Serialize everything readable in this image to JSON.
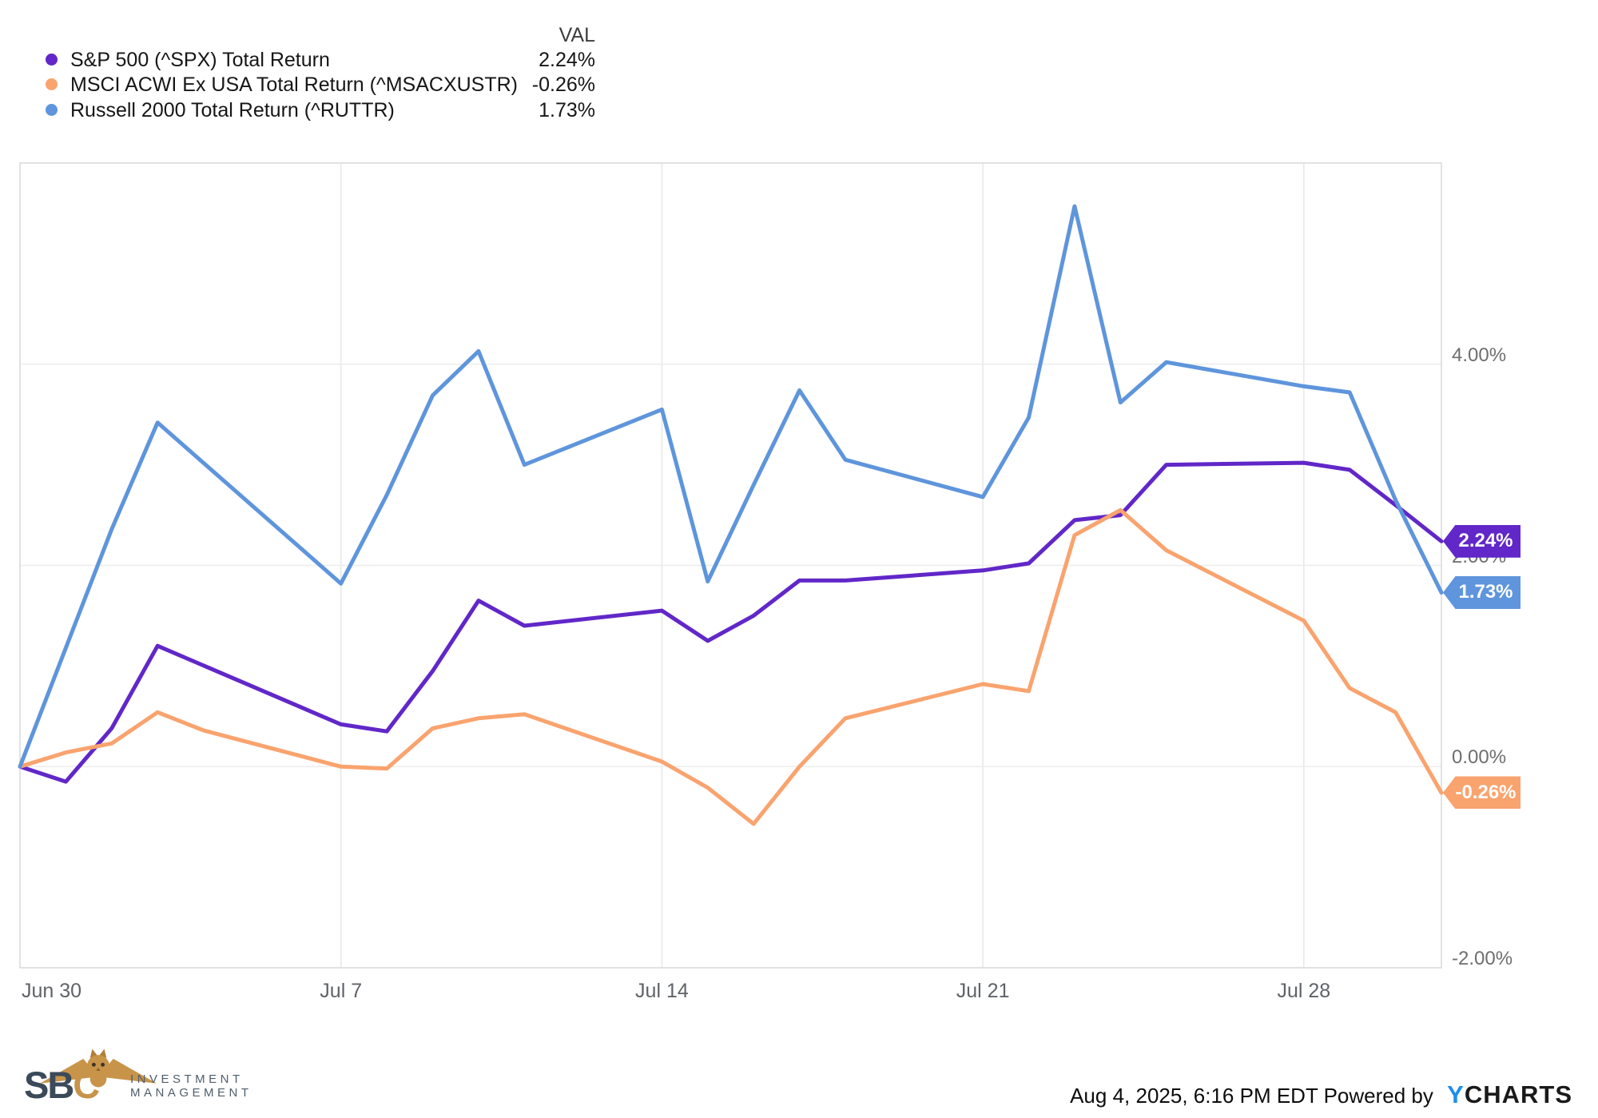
{
  "legend": {
    "val_header": "VAL",
    "items": [
      {
        "label": "S&P 500 (^SPX) Total Return",
        "value": "2.24%",
        "color": "#6127C8"
      },
      {
        "label": "MSCI ACWI Ex USA Total Return (^MSACXUSTR)",
        "value": "-0.26%",
        "color": "#F9A36E"
      },
      {
        "label": "Russell 2000 Total Return (^RUTTR)",
        "value": "1.73%",
        "color": "#5E95DC"
      }
    ]
  },
  "chart_data": {
    "type": "line",
    "title": "",
    "xlabel": "",
    "ylabel": "",
    "grid": true,
    "legend_position": "top-left",
    "ylim": [
      -2,
      6
    ],
    "xlim_days": [
      0,
      31
    ],
    "y_ticks": [
      {
        "label": "4.00%",
        "v": 4
      },
      {
        "label": "2.00%",
        "v": 2
      },
      {
        "label": "0.00%",
        "v": 0
      },
      {
        "label": "-2.00%",
        "v": -2
      }
    ],
    "x_ticks": [
      {
        "label": "Jun 30",
        "t": 0
      },
      {
        "label": "Jul 7",
        "t": 7
      },
      {
        "label": "Jul 14",
        "t": 14
      },
      {
        "label": "Jul 21",
        "t": 21
      },
      {
        "label": "Jul 28",
        "t": 28
      }
    ],
    "series": [
      {
        "name": "S&P 500 (^SPX) Total Return",
        "ticker": "^SPX",
        "color": "#6127C8",
        "final": "2.24%",
        "points": [
          [
            "Jun 30",
            0,
            0.0
          ],
          [
            "Jul 1",
            1,
            -0.15
          ],
          [
            "Jul 2",
            2,
            0.38
          ],
          [
            "Jul 3",
            3,
            1.2
          ],
          [
            "Jul 7",
            7,
            0.42
          ],
          [
            "Jul 8",
            8,
            0.35
          ],
          [
            "Jul 9",
            9,
            0.95
          ],
          [
            "Jul 10",
            10,
            1.65
          ],
          [
            "Jul 11",
            11,
            1.4
          ],
          [
            "Jul 14",
            14,
            1.55
          ],
          [
            "Jul 15",
            15,
            1.25
          ],
          [
            "Jul 16",
            16,
            1.5
          ],
          [
            "Jul 17",
            17,
            1.85
          ],
          [
            "Jul 18",
            18,
            1.85
          ],
          [
            "Jul 21",
            21,
            1.95
          ],
          [
            "Jul 22",
            22,
            2.02
          ],
          [
            "Jul 23",
            23,
            2.45
          ],
          [
            "Jul 24",
            24,
            2.5
          ],
          [
            "Jul 25",
            25,
            3.0
          ],
          [
            "Jul 28",
            28,
            3.02
          ],
          [
            "Jul 29",
            29,
            2.95
          ],
          [
            "Jul 30",
            30,
            2.6
          ],
          [
            "Jul 31",
            31,
            2.24
          ]
        ]
      },
      {
        "name": "MSCI ACWI Ex USA Total Return (^MSACXUSTR)",
        "ticker": "^MSACXUSTR",
        "color": "#F9A36E",
        "final": "-0.26%",
        "points": [
          [
            "Jun 30",
            0,
            0.0
          ],
          [
            "Jul 1",
            1,
            0.14
          ],
          [
            "Jul 2",
            2,
            0.23
          ],
          [
            "Jul 3",
            3,
            0.54
          ],
          [
            "Jul 4",
            4,
            0.36
          ],
          [
            "Jul 7",
            7,
            0.0
          ],
          [
            "Jul 8",
            8,
            -0.02
          ],
          [
            "Jul 9",
            9,
            0.38
          ],
          [
            "Jul 10",
            10,
            0.48
          ],
          [
            "Jul 11",
            11,
            0.52
          ],
          [
            "Jul 14",
            14,
            0.05
          ],
          [
            "Jul 15",
            15,
            -0.21
          ],
          [
            "Jul 16",
            16,
            -0.57
          ],
          [
            "Jul 17",
            17,
            0.0
          ],
          [
            "Jul 18",
            18,
            0.48
          ],
          [
            "Jul 21",
            21,
            0.82
          ],
          [
            "Jul 22",
            22,
            0.75
          ],
          [
            "Jul 23",
            23,
            2.3
          ],
          [
            "Jul 24",
            24,
            2.55
          ],
          [
            "Jul 25",
            25,
            2.15
          ],
          [
            "Jul 28",
            28,
            1.45
          ],
          [
            "Jul 29",
            29,
            0.78
          ],
          [
            "Jul 30",
            30,
            0.54
          ],
          [
            "Jul 31",
            31,
            -0.26
          ]
        ]
      },
      {
        "name": "Russell 2000 Total Return (^RUTTR)",
        "ticker": "^RUTTR",
        "color": "#5E95DC",
        "final": "1.73%",
        "points": [
          [
            "Jun 30",
            0,
            0.0
          ],
          [
            "Jul 1",
            1,
            1.18
          ],
          [
            "Jul 2",
            2,
            2.36
          ],
          [
            "Jul 3",
            3,
            3.42
          ],
          [
            "Jul 7",
            7,
            1.82
          ],
          [
            "Jul 8",
            8,
            2.7
          ],
          [
            "Jul 9",
            9,
            3.69
          ],
          [
            "Jul 10",
            10,
            4.13
          ],
          [
            "Jul 11",
            11,
            3.0
          ],
          [
            "Jul 14",
            14,
            3.55
          ],
          [
            "Jul 15",
            15,
            1.84
          ],
          [
            "Jul 16",
            16,
            2.8
          ],
          [
            "Jul 17",
            17,
            3.74
          ],
          [
            "Jul 18",
            18,
            3.05
          ],
          [
            "Jul 21",
            21,
            2.68
          ],
          [
            "Jul 22",
            22,
            3.47
          ],
          [
            "Jul 23",
            23,
            5.57
          ],
          [
            "Jul 24",
            24,
            3.62
          ],
          [
            "Jul 25",
            25,
            4.02
          ],
          [
            "Jul 28",
            28,
            3.78
          ],
          [
            "Jul 29",
            29,
            3.72
          ],
          [
            "Jul 30",
            30,
            2.65
          ],
          [
            "Jul 31",
            31,
            1.73
          ]
        ]
      }
    ]
  },
  "footer": {
    "timestamp": "Aug 4, 2025, 6:16 PM EDT",
    "powered_by": "Powered by",
    "brand_y": "Y",
    "brand_rest": "CHARTS",
    "brand_y_color": "#1E8EEF",
    "logo": {
      "letters_primary": "SB",
      "letter_accent": "C",
      "line1": "INVESTMENT",
      "line2": "MANAGEMENT",
      "gold": "#C7944A",
      "slate": "#3A4A5A",
      "text_color": "#4E5E6C"
    }
  }
}
